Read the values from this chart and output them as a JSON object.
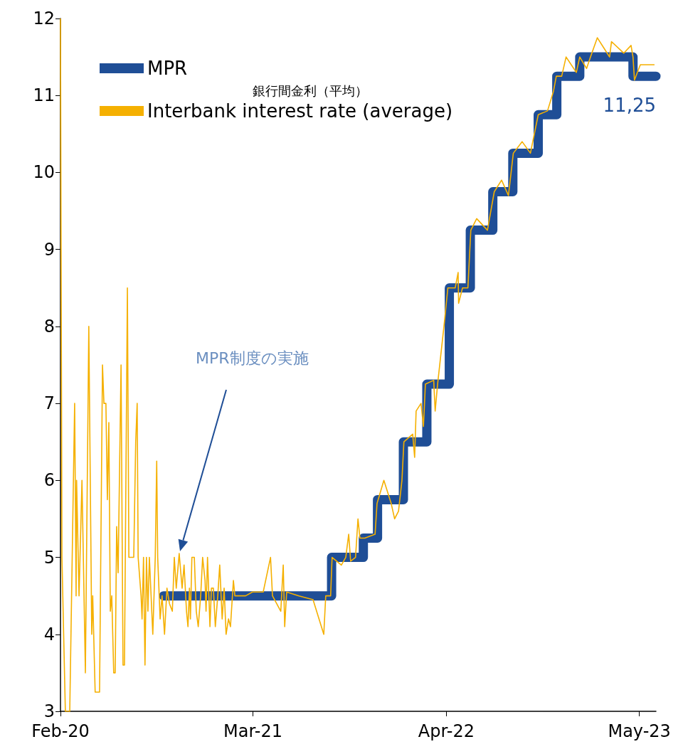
{
  "chart_data": {
    "type": "line",
    "annotations": [
      "銀行間金利（平均）",
      "MPR制度の実施",
      {
        "text": "11,25",
        "x": "2023-06-04",
        "y": 11.25
      }
    ],
    "series": [
      {
        "name": "MPR",
        "type": "step",
        "color": "#1f4e96",
        "x": [
          "2020-08-30",
          "2021-08-09",
          "2021-10-13",
          "2021-11-11",
          "2022-01-03",
          "2022-02-20",
          "2022-04-07",
          "2022-05-20",
          "2022-07-05",
          "2022-08-15",
          "2022-10-06",
          "2022-11-13",
          "2022-12-30",
          "2023-04-18",
          "2023-06-04"
        ],
        "values": [
          4.5,
          5.0,
          5.25,
          5.75,
          6.5,
          7.25,
          8.5,
          9.25,
          9.75,
          10.25,
          10.75,
          11.25,
          11.5,
          11.25,
          11.25
        ]
      },
      {
        "name": "Interbank interest rate (average)",
        "type": "line",
        "color": "#f5b000",
        "x": [
          "2020-02-01",
          "2020-02-04",
          "2020-02-11",
          "2020-02-20",
          "2020-03-01",
          "2020-03-04",
          "2020-03-05",
          "2020-03-10",
          "2020-03-16",
          "2020-03-23",
          "2020-03-30",
          "2020-04-05",
          "2020-04-07",
          "2020-04-12",
          "2020-04-21",
          "2020-04-27",
          "2020-04-30",
          "2020-05-04",
          "2020-05-07",
          "2020-05-10",
          "2020-05-13",
          "2020-05-16",
          "2020-05-20",
          "2020-05-23",
          "2020-05-26",
          "2020-05-29",
          "2020-06-04",
          "2020-06-08",
          "2020-06-11",
          "2020-06-17",
          "2020-06-20",
          "2020-06-30",
          "2020-07-04",
          "2020-07-07",
          "2020-07-09",
          "2020-07-15",
          "2020-07-17",
          "2020-07-20",
          "2020-07-23",
          "2020-07-26",
          "2020-07-29",
          "2020-08-01",
          "2020-08-08",
          "2020-08-13",
          "2020-08-16",
          "2020-08-18",
          "2020-08-23",
          "2020-08-27",
          "2020-09-01",
          "2020-09-06",
          "2020-09-11",
          "2020-09-17",
          "2020-09-21",
          "2020-09-25",
          "2020-10-01",
          "2020-10-07",
          "2020-10-11",
          "2020-10-16",
          "2020-10-19",
          "2020-10-22",
          "2020-10-24",
          "2020-10-27",
          "2020-11-01",
          "2020-11-05",
          "2020-11-09",
          "2020-11-14",
          "2020-11-18",
          "2020-11-23",
          "2020-11-25",
          "2020-11-28",
          "2020-12-03",
          "2020-12-06",
          "2020-12-10",
          "2020-12-14",
          "2020-12-19",
          "2020-12-23",
          "2020-12-28",
          "2021-01-01",
          "2021-01-05",
          "2021-01-10",
          "2021-01-14",
          "2021-01-20",
          "2021-01-23",
          "2021-02-14",
          "2021-02-28",
          "2021-03-22",
          "2021-04-06",
          "2021-04-10",
          "2021-04-27",
          "2021-05-02",
          "2021-05-05",
          "2021-05-09",
          "2021-06-03",
          "2021-07-02",
          "2021-07-24",
          "2021-07-28",
          "2021-08-07",
          "2021-08-10",
          "2021-08-29",
          "2021-09-07",
          "2021-09-13",
          "2021-09-17",
          "2021-09-27",
          "2021-10-02",
          "2021-10-06",
          "2021-10-16",
          "2021-11-06",
          "2021-11-10",
          "2021-11-24",
          "2021-12-09",
          "2021-12-16",
          "2021-12-24",
          "2021-12-31",
          "2022-01-04",
          "2022-01-22",
          "2022-01-26",
          "2022-01-29",
          "2022-02-08",
          "2022-02-13",
          "2022-02-17",
          "2022-03-06",
          "2022-03-09",
          "2022-03-14",
          "2022-03-27",
          "2022-04-04",
          "2022-04-19",
          "2022-04-25",
          "2022-04-26",
          "2022-05-04",
          "2022-05-15",
          "2022-05-21",
          "2022-06-02",
          "2022-06-24",
          "2022-07-08",
          "2022-07-23",
          "2022-08-06",
          "2022-08-16",
          "2022-09-03",
          "2022-09-20",
          "2022-10-06",
          "2022-10-25",
          "2022-11-06",
          "2022-11-12",
          "2022-11-23",
          "2022-12-02",
          "2022-12-23",
          "2022-12-30",
          "2023-01-13",
          "2023-01-21",
          "2023-02-04",
          "2023-02-19",
          "2023-03-01",
          "2023-03-05",
          "2023-03-30",
          "2023-04-14",
          "2023-04-18",
          "2023-04-21",
          "2023-04-27",
          "2023-05-03",
          "2023-06-01"
        ],
        "values": [
          12,
          5,
          3,
          3,
          7,
          4.5,
          6,
          4.5,
          6,
          3.5,
          8,
          4,
          4.5,
          3.25,
          3.25,
          7.5,
          7,
          7,
          5.75,
          6.75,
          4.3,
          4.5,
          3.5,
          3.5,
          5.4,
          4.8,
          7.5,
          3.6,
          3.6,
          8.5,
          5,
          5,
          6.5,
          7,
          5,
          4.5,
          4.2,
          5,
          3.6,
          5,
          4.3,
          5,
          4,
          5,
          6.25,
          5,
          4.2,
          4.5,
          4,
          4.6,
          4.4,
          4.3,
          5,
          4.6,
          5.05,
          4.6,
          4.9,
          4.3,
          4.1,
          4.6,
          4.2,
          5,
          5,
          4.3,
          4.1,
          4.5,
          5,
          4.7,
          4.3,
          5,
          4.1,
          4.6,
          4.6,
          4.1,
          4.5,
          4.9,
          4.2,
          4.6,
          4.0,
          4.2,
          4.1,
          4.7,
          4.5,
          4.5,
          4.55,
          4.55,
          5.0,
          4.5,
          4.3,
          4.9,
          4.1,
          4.55,
          4.5,
          4.45,
          4.0,
          4.5,
          4.5,
          5.0,
          4.9,
          5.0,
          5.3,
          4.95,
          5.0,
          5.5,
          5.25,
          5.25,
          5.3,
          5.7,
          6.0,
          5.7,
          5.5,
          5.6,
          6.0,
          6.5,
          6.6,
          6.3,
          6.9,
          7.0,
          6.7,
          7.25,
          7.3,
          6.9,
          7.25,
          8.0,
          8.5,
          8.5,
          8.7,
          8.3,
          8.5,
          8.5,
          9.25,
          9.4,
          9.25,
          9.75,
          9.9,
          9.7,
          10.25,
          10.4,
          10.25,
          10.75,
          10.8,
          11.05,
          11.25,
          11.25,
          11.5,
          11.3,
          11.5,
          11.35,
          11.5,
          11.75,
          11.6,
          11.5,
          11.7,
          11.55,
          11.65,
          11.5,
          11.2,
          11.3,
          11.4,
          11.4
        ]
      }
    ],
    "xlim": [
      "2020-02-01",
      "2023-06-04"
    ],
    "xticks": [
      {
        "value": "2020-02",
        "label": "Feb-20"
      },
      {
        "value": "2021-03",
        "label": "Mar-21"
      },
      {
        "value": "2022-04",
        "label": "Apr-22"
      },
      {
        "value": "2023-05",
        "label": "May-23"
      }
    ],
    "ylim": [
      3,
      12
    ],
    "yticks": [
      3,
      4,
      5,
      6,
      7,
      8,
      9,
      10,
      11,
      12
    ],
    "grid": false,
    "legend": "top left",
    "marker": "none",
    "line_style": "solid"
  }
}
